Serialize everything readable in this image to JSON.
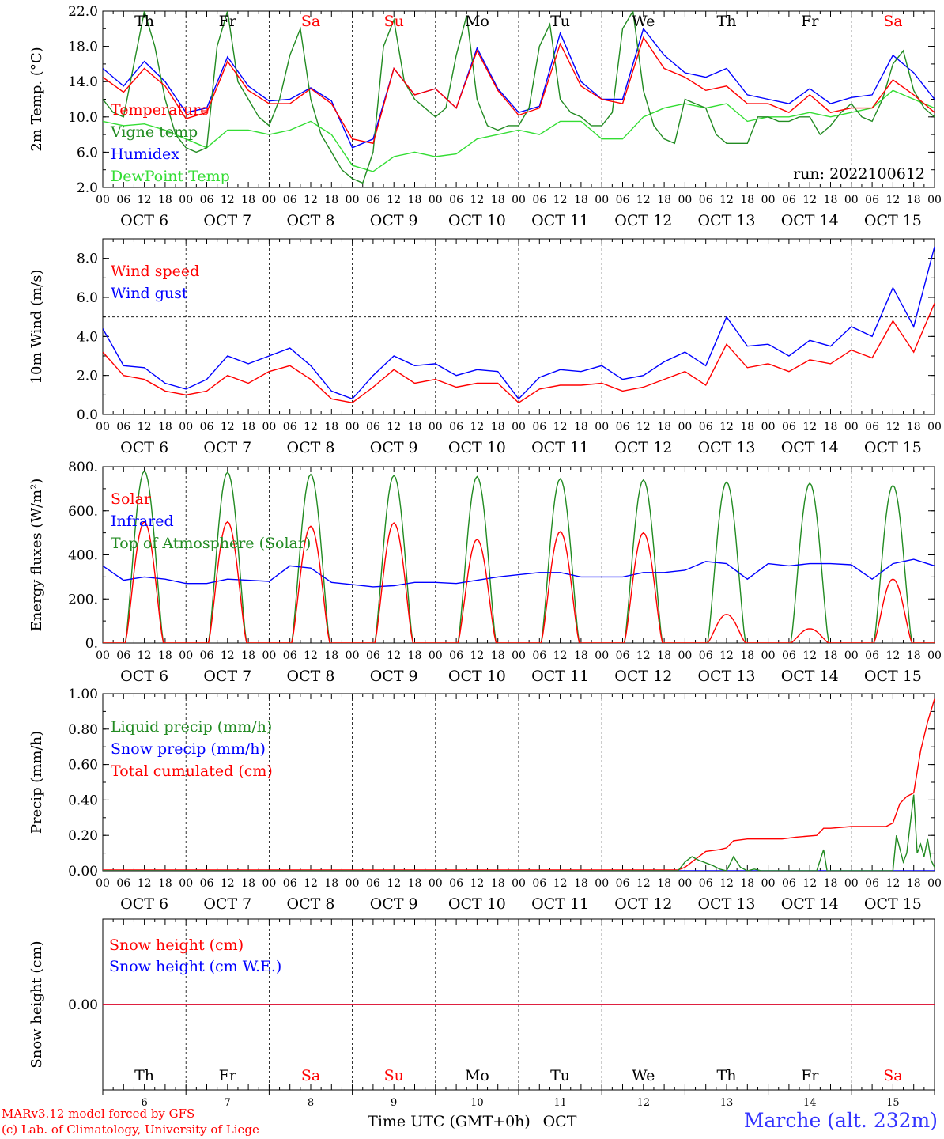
{
  "colors": {
    "red": "#ff0000",
    "green": "#228b22",
    "blue": "#0000ff",
    "lightgreen": "#33dd33",
    "purple": "#800080",
    "axis": "#000000",
    "weekday": "#000000",
    "weekend": "#ff0000",
    "station": "#3333ff"
  },
  "day_labels": [
    "Th",
    "Fr",
    "Sa",
    "Su",
    "Mo",
    "Tu",
    "We",
    "Th",
    "Fr",
    "Sa"
  ],
  "weekend_flags": [
    false,
    false,
    true,
    true,
    false,
    false,
    false,
    false,
    false,
    true
  ],
  "hour_ticks": [
    "00",
    "06",
    "12",
    "18"
  ],
  "date_labels": [
    "OCT  6",
    "OCT  7",
    "OCT  8",
    "OCT  9",
    "OCT 10",
    "OCT 11",
    "OCT 12",
    "OCT 13",
    "OCT 14",
    "OCT 15"
  ],
  "bottom_day_numbers": [
    "6",
    "7",
    "8",
    "9",
    "10",
    "11",
    "12",
    "13",
    "14",
    "15"
  ],
  "footer": {
    "time_axis_label": "Time UTC (GMT+0h)",
    "month_label": "OCT",
    "credit_line1": "MARv3.12 model forced by GFS",
    "credit_line2": "(c) Lab. of Climatology, University of Liege",
    "station": "Marche (alt. 232m)"
  },
  "chart_data": [
    {
      "type": "line",
      "ylabel": "2m Temp. (°C)",
      "ylim": [
        2,
        22
      ],
      "yticks": [
        "2.0",
        "6.0",
        "10.0",
        "14.0",
        "18.0",
        "22.0"
      ],
      "ytick_values": [
        2,
        6,
        10,
        14,
        18,
        22
      ],
      "run_label": "run: 2022100612",
      "x_unit": "hours since Oct 6 00 UTC",
      "series": [
        {
          "name": "Temperature",
          "color": "#ff0000",
          "x": [
            0,
            6,
            12,
            18,
            24,
            30,
            36,
            42,
            48,
            54,
            60,
            66,
            72,
            78,
            84,
            90,
            96,
            102,
            108,
            114,
            120,
            126,
            132,
            138,
            144,
            150,
            156,
            162,
            168,
            174,
            180,
            186,
            192,
            198,
            204,
            210,
            216,
            222,
            228,
            234,
            240
          ],
          "y": [
            14.5,
            12.8,
            15.5,
            13.5,
            9.8,
            10.5,
            16.3,
            13,
            11.5,
            11.5,
            13.2,
            11.5,
            7.5,
            7,
            15.5,
            12.5,
            13.2,
            11,
            17.5,
            13,
            10.2,
            11,
            18.3,
            13.5,
            12,
            11.5,
            19,
            15.5,
            14.5,
            13,
            13.5,
            11.5,
            11.5,
            10.5,
            12.5,
            10.5,
            11,
            11,
            14.2,
            12.5,
            10.5
          ]
        },
        {
          "name": "Vigne temp",
          "color": "#228b22",
          "x": [
            0,
            3,
            6,
            9,
            12,
            15,
            18,
            21,
            24,
            27,
            30,
            33,
            36,
            39,
            42,
            45,
            48,
            51,
            54,
            57,
            60,
            63,
            66,
            69,
            72,
            75,
            78,
            81,
            84,
            87,
            90,
            93,
            96,
            99,
            102,
            105,
            108,
            111,
            114,
            117,
            120,
            123,
            126,
            129,
            132,
            135,
            138,
            141,
            144,
            147,
            150,
            153,
            156,
            159,
            162,
            165,
            168,
            171,
            174,
            177,
            180,
            183,
            186,
            189,
            192,
            195,
            198,
            201,
            204,
            207,
            210,
            213,
            216,
            219,
            222,
            225,
            228,
            231,
            234,
            237,
            240
          ],
          "y": [
            12,
            10.5,
            10,
            16,
            22,
            18,
            12,
            8,
            6.5,
            6,
            6.5,
            18,
            22,
            14,
            12,
            10,
            9,
            12,
            17,
            20,
            12,
            8,
            6,
            4,
            3,
            2.5,
            6,
            18,
            21,
            14,
            12,
            11,
            10,
            11,
            17,
            21.5,
            12,
            9,
            8.5,
            9,
            9,
            11,
            18,
            20.5,
            12,
            10.5,
            10,
            9,
            9,
            10.5,
            20,
            22,
            13,
            9,
            7.5,
            7,
            12,
            11.5,
            11,
            8,
            7,
            7,
            7,
            10,
            10,
            9.5,
            9.5,
            10,
            10,
            8,
            9,
            10.5,
            11.5,
            10,
            9.5,
            12,
            16,
            17.5,
            13,
            11,
            10
          ]
        },
        {
          "name": "Humidex",
          "color": "#0000ff",
          "x": [
            0,
            6,
            12,
            18,
            24,
            30,
            36,
            42,
            48,
            54,
            60,
            66,
            72,
            78,
            84,
            90,
            96,
            102,
            108,
            114,
            120,
            126,
            132,
            138,
            144,
            150,
            156,
            162,
            168,
            174,
            180,
            186,
            192,
            198,
            204,
            210,
            216,
            222,
            228,
            234,
            240
          ],
          "y": [
            15.5,
            13.5,
            16.3,
            14,
            10.5,
            11,
            16.8,
            13.5,
            11.8,
            12,
            13.3,
            11.8,
            6.5,
            7.5,
            15.5,
            12.5,
            13.2,
            11,
            17.8,
            13.2,
            10.5,
            11.2,
            19.5,
            14,
            12,
            12,
            20,
            17,
            15,
            14.5,
            15.5,
            12.5,
            12,
            11.5,
            13.2,
            11.5,
            12.2,
            12.5,
            17,
            15,
            12
          ]
        },
        {
          "name": "DewPoint Temp",
          "color": "#33dd33",
          "x": [
            0,
            6,
            12,
            18,
            24,
            30,
            36,
            42,
            48,
            54,
            60,
            66,
            72,
            78,
            84,
            90,
            96,
            102,
            108,
            114,
            120,
            126,
            132,
            138,
            144,
            150,
            156,
            162,
            168,
            174,
            180,
            186,
            192,
            198,
            204,
            210,
            216,
            222,
            228,
            234,
            240
          ],
          "y": [
            9.5,
            9,
            9.2,
            8.5,
            7.5,
            6.5,
            8.5,
            8.5,
            8,
            8.5,
            9.5,
            8,
            4.5,
            3.8,
            5.5,
            6,
            5.5,
            5.8,
            7.5,
            8,
            8.5,
            8,
            9.5,
            9.5,
            7.5,
            7.5,
            10,
            11,
            11.5,
            11,
            11.5,
            9.5,
            10,
            10,
            10.5,
            10,
            10.5,
            11,
            13,
            12,
            11
          ]
        }
      ]
    },
    {
      "type": "line",
      "ylabel": "10m Wind (m/s)",
      "ylim": [
        0,
        9
      ],
      "yticks": [
        "0.0",
        "2.0",
        "4.0",
        "6.0",
        "8.0"
      ],
      "ytick_values": [
        0,
        2,
        4,
        6,
        8
      ],
      "reference_line_y": 5,
      "x_unit": "hours since Oct 6 00 UTC",
      "series": [
        {
          "name": "Wind speed",
          "color": "#ff0000",
          "x": [
            0,
            6,
            12,
            18,
            24,
            30,
            36,
            42,
            48,
            54,
            60,
            66,
            72,
            78,
            84,
            90,
            96,
            102,
            108,
            114,
            120,
            126,
            132,
            138,
            144,
            150,
            156,
            162,
            168,
            174,
            180,
            186,
            192,
            198,
            204,
            210,
            216,
            222,
            228,
            234,
            240
          ],
          "y": [
            3.2,
            2.0,
            1.8,
            1.2,
            1.0,
            1.2,
            2.0,
            1.6,
            2.2,
            2.5,
            1.8,
            0.8,
            0.6,
            1.4,
            2.3,
            1.6,
            1.8,
            1.4,
            1.6,
            1.6,
            0.6,
            1.3,
            1.5,
            1.5,
            1.6,
            1.2,
            1.4,
            1.8,
            2.2,
            1.5,
            3.6,
            2.4,
            2.6,
            2.2,
            2.8,
            2.6,
            3.3,
            2.9,
            4.8,
            3.2,
            5.7
          ]
        },
        {
          "name": "Wind gust",
          "color": "#0000ff",
          "x": [
            0,
            6,
            12,
            18,
            24,
            30,
            36,
            42,
            48,
            54,
            60,
            66,
            72,
            78,
            84,
            90,
            96,
            102,
            108,
            114,
            120,
            126,
            132,
            138,
            144,
            150,
            156,
            162,
            168,
            174,
            180,
            186,
            192,
            198,
            204,
            210,
            216,
            222,
            228,
            234,
            240
          ],
          "y": [
            4.4,
            2.5,
            2.4,
            1.6,
            1.3,
            1.8,
            3.0,
            2.6,
            3.0,
            3.4,
            2.5,
            1.2,
            0.8,
            2.0,
            3.0,
            2.5,
            2.6,
            2.0,
            2.3,
            2.2,
            0.8,
            1.9,
            2.3,
            2.2,
            2.5,
            1.8,
            2.0,
            2.7,
            3.2,
            2.5,
            5.0,
            3.5,
            3.6,
            3.0,
            3.8,
            3.5,
            4.5,
            4.0,
            6.5,
            4.5,
            8.6
          ]
        }
      ]
    },
    {
      "type": "line",
      "ylabel": "Energy fluxes (W/m²)",
      "ylim": [
        0,
        800
      ],
      "yticks": [
        "0.",
        "200.",
        "400.",
        "600.",
        "800."
      ],
      "ytick_values": [
        0,
        200,
        400,
        600,
        800
      ],
      "x_unit": "hours since Oct 6 00 UTC",
      "series": [
        {
          "name": "Solar",
          "color": "#ff0000",
          "kind": "daily_peaks",
          "days": [
            0,
            1,
            2,
            3,
            4,
            5,
            6,
            7,
            8,
            9
          ],
          "peaks": [
            550,
            550,
            530,
            545,
            470,
            505,
            500,
            130,
            65,
            290
          ]
        },
        {
          "name": "Infrared",
          "color": "#0000ff",
          "x": [
            0,
            6,
            12,
            18,
            24,
            30,
            36,
            42,
            48,
            54,
            60,
            66,
            72,
            78,
            84,
            90,
            96,
            102,
            108,
            114,
            120,
            126,
            132,
            138,
            144,
            150,
            156,
            162,
            168,
            174,
            180,
            186,
            192,
            198,
            204,
            210,
            216,
            222,
            228,
            234,
            240
          ],
          "y": [
            350,
            285,
            300,
            290,
            270,
            270,
            290,
            285,
            280,
            350,
            340,
            275,
            265,
            255,
            260,
            275,
            275,
            270,
            285,
            300,
            310,
            320,
            320,
            300,
            300,
            300,
            320,
            320,
            330,
            370,
            360,
            290,
            360,
            350,
            360,
            360,
            355,
            290,
            360,
            380,
            350
          ]
        },
        {
          "name": "Top of Atmosphere (Solar)",
          "color": "#228b22",
          "kind": "daily_peaks",
          "days": [
            0,
            1,
            2,
            3,
            4,
            5,
            6,
            7,
            8,
            9
          ],
          "peaks": [
            780,
            775,
            765,
            760,
            755,
            745,
            740,
            730,
            725,
            715
          ]
        }
      ],
      "daylight_hours": [
        6.5,
        17.5
      ]
    },
    {
      "type": "line",
      "ylabel": "Precip (mm/h)",
      "ylim": [
        0,
        1
      ],
      "yticks": [
        "0.00",
        "0.20",
        "0.40",
        "0.60",
        "0.80",
        "1.00"
      ],
      "ytick_values": [
        0,
        0.2,
        0.4,
        0.6,
        0.8,
        1.0
      ],
      "x_unit": "hours since Oct 6 00 UTC",
      "series": [
        {
          "name": "Liquid precip (mm/h)",
          "color": "#228b22",
          "x": [
            0,
            166,
            168,
            170,
            172,
            176,
            178,
            180,
            182,
            184,
            186,
            188,
            190,
            194,
            196,
            198,
            200,
            206,
            208,
            209,
            212,
            216,
            224,
            228,
            229,
            231,
            232,
            234,
            235,
            236,
            237,
            238,
            239,
            240
          ],
          "y": [
            0,
            0,
            0.05,
            0.08,
            0.06,
            0.03,
            0.01,
            0,
            0.08,
            0.02,
            0,
            0.01,
            0,
            0,
            0,
            0,
            0,
            0,
            0.12,
            0,
            0,
            0,
            0,
            0,
            0.2,
            0.05,
            0.1,
            0.43,
            0.1,
            0.15,
            0.08,
            0.18,
            0.06,
            0.02
          ]
        },
        {
          "name": "Snow precip (mm/h)",
          "color": "#0000ff",
          "x": [
            0,
            240
          ],
          "y": [
            0,
            0
          ]
        },
        {
          "name": "Total cumulated (cm)",
          "color": "#ff0000",
          "x": [
            0,
            166,
            168,
            172,
            174,
            178,
            180,
            182,
            186,
            190,
            196,
            200,
            206,
            208,
            210,
            216,
            222,
            226,
            228,
            230,
            232,
            234,
            236,
            238,
            240
          ],
          "y": [
            0.005,
            0.005,
            0.02,
            0.08,
            0.11,
            0.12,
            0.13,
            0.17,
            0.18,
            0.18,
            0.18,
            0.19,
            0.2,
            0.24,
            0.24,
            0.25,
            0.25,
            0.25,
            0.27,
            0.38,
            0.42,
            0.44,
            0.68,
            0.84,
            0.97
          ]
        }
      ]
    },
    {
      "type": "line",
      "ylabel": "Snow height (cm)",
      "ylim": [
        -0.5,
        0.5
      ],
      "yticks": [
        "0.00"
      ],
      "ytick_values": [
        0
      ],
      "x_unit": "hours since Oct 6 00 UTC",
      "series": [
        {
          "name": "Snow height (cm)",
          "color": "#ff0000",
          "x": [
            0,
            240
          ],
          "y": [
            0,
            0
          ]
        },
        {
          "name": "Snow height (cm W.E.)",
          "color": "#0000ff",
          "x": [
            0,
            240
          ],
          "y": [
            0,
            0
          ]
        }
      ]
    }
  ]
}
